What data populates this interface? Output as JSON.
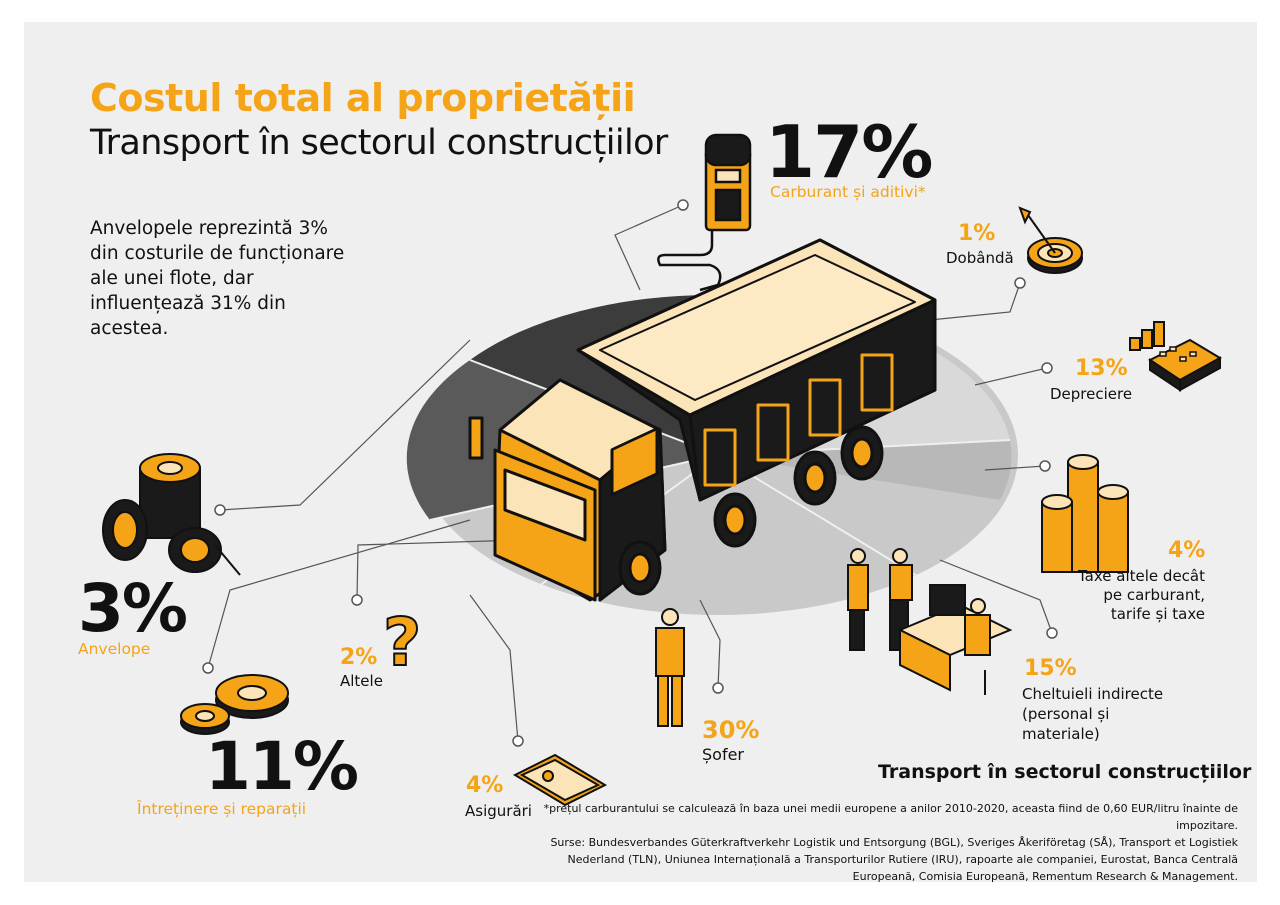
{
  "header": {
    "title": "Costul total al proprietății",
    "subtitle": "Transport în sectorul construcțiilor"
  },
  "intro": "Anvelopele reprezintă 3% din costurile de funcționare ale unei flote, dar influențează 31% din acestea.",
  "costs": {
    "fuel": {
      "value": "17%",
      "label": "Carburant și aditivi*"
    },
    "interest": {
      "value": "1%",
      "label": "Dobândă"
    },
    "depreciation": {
      "value": "13%",
      "label": "Depreciere"
    },
    "taxes": {
      "value": "4%",
      "label_line1": "Taxe altele decât",
      "label_line2": "pe carburant,",
      "label_line3": "tarife și taxe"
    },
    "overhead": {
      "value": "15%",
      "label_line1": "Cheltuieli indirecte",
      "label_line2": "(personal și",
      "label_line3": "materiale)"
    },
    "driver": {
      "value": "30%",
      "label": "Șofer"
    },
    "insurance": {
      "value": "4%",
      "label": "Asigurări"
    },
    "other": {
      "value": "2%",
      "label": "Altele"
    },
    "maintenance": {
      "value": "11%",
      "label": "Întreținere și reparații"
    },
    "tyres": {
      "value": "3%",
      "label": "Anvelope"
    }
  },
  "footer": {
    "title": "Transport în sectorul construcțiilor",
    "note": "*prețul carburantului se calculează în baza unei medii europene a anilor 2010-2020, aceasta fiind de 0,60 EUR/litru înainte de impozitare.",
    "sources": "Surse: Bundesverbandes Güterkraftverkehr Logistik und Entsorgung (BGL), Sveriges Åkeriföretag (SÅ), Transport et Logistiek Nederland (TLN), Uniunea Internațională a Transporturilor Rutiere (IRU), rapoarte ale companiei, Eurostat, Banca Centrală Europeană, Comisia Europeană, Rementum Research & Management."
  },
  "colors": {
    "accent": "#f5a418",
    "text": "#111111",
    "panel": "#efefef",
    "pie_dark": "#555555",
    "pie_light": "#c8c8c8"
  }
}
